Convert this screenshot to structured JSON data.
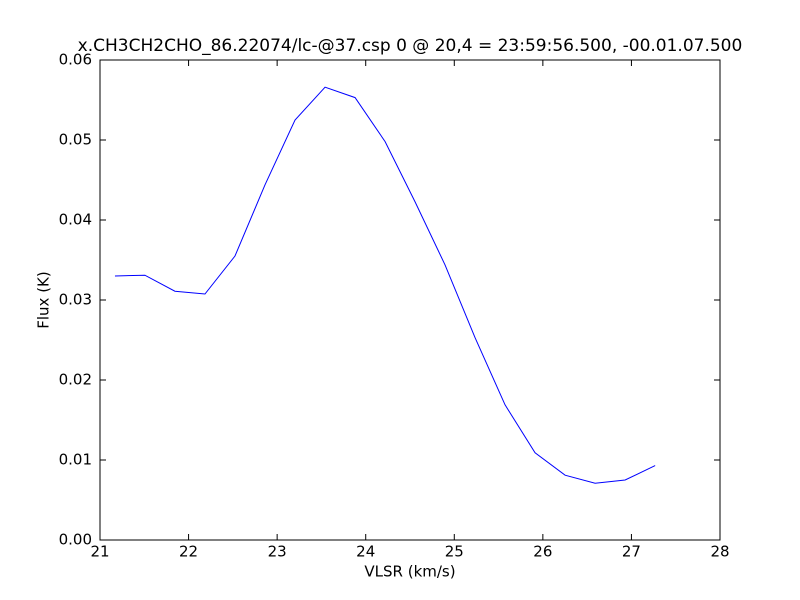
{
  "chart_data": {
    "type": "line",
    "title": "x.CH3CH2CHO_86.22074/lc-@37.csp 0 @ 20,4 = 23:59:56.500, -00.01.07.500",
    "x_label": "VLSR (km/s)",
    "y_label": "Flux (K)",
    "x": [
      21.169,
      21.507,
      21.846,
      22.185,
      22.524,
      22.863,
      23.202,
      23.541,
      23.88,
      24.219,
      24.556,
      24.895,
      25.234,
      25.573,
      25.912,
      26.251,
      26.59,
      26.929,
      27.268
    ],
    "series": [
      {
        "color": "#0000ff",
        "values": [
          0.033,
          0.0331,
          0.0311,
          0.03075,
          0.0355,
          0.0444,
          0.0525,
          0.0566,
          0.0553,
          0.0498,
          0.0423,
          0.0344,
          0.0253,
          0.0169,
          0.0109,
          0.0081,
          0.0071,
          0.0075,
          0.0093
        ]
      }
    ],
    "xlim": [
      21,
      28
    ],
    "xticks": [
      21,
      22,
      23,
      24,
      25,
      26,
      27,
      28
    ],
    "ylim": [
      0,
      0.06
    ],
    "yticks": [
      {
        "value": 0,
        "label": "0.00"
      },
      {
        "value": 0.01,
        "label": "0.01"
      },
      {
        "value": 0.02,
        "label": "0.02"
      },
      {
        "value": 0.03,
        "label": "0.03"
      },
      {
        "value": 0.04,
        "label": "0.04"
      },
      {
        "value": 0.05,
        "label": "0.05"
      },
      {
        "value": 0.06,
        "label": "0.06"
      }
    ]
  }
}
